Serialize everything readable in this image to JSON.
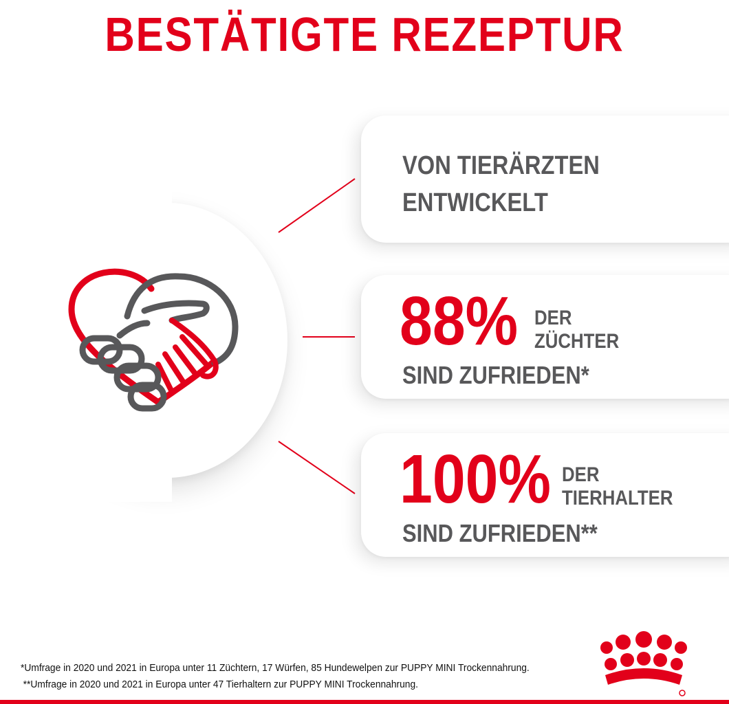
{
  "title": "BESTÄTIGTE REZEPTUR",
  "icon": "handshake-heart-icon",
  "brand_logo": "royal-crown-icon",
  "colors": {
    "accent": "#e2001a",
    "text": "#58585a",
    "background": "#ffffff"
  },
  "cards": [
    {
      "lines": [
        "VON TIERÄRZTEN",
        "ENTWICKELT"
      ]
    },
    {
      "value": "88%",
      "label_lines": [
        "DER",
        "ZÜCHTER"
      ],
      "sub": "SIND ZUFRIEDEN*"
    },
    {
      "value": "100%",
      "label_lines": [
        "DER",
        "TIERHALTER"
      ],
      "sub": "SIND ZUFRIEDEN**"
    }
  ],
  "footnotes": [
    "*Umfrage in 2020 und 2021 in Europa unter 11 Züchtern, 17 Würfen, 85 Hundewelpen zur PUPPY MINI Trockennahrung.",
    "**Umfrage in 2020 und 2021 in Europa unter 47 Tierhaltern zur PUPPY MINI Trockennahrung."
  ]
}
